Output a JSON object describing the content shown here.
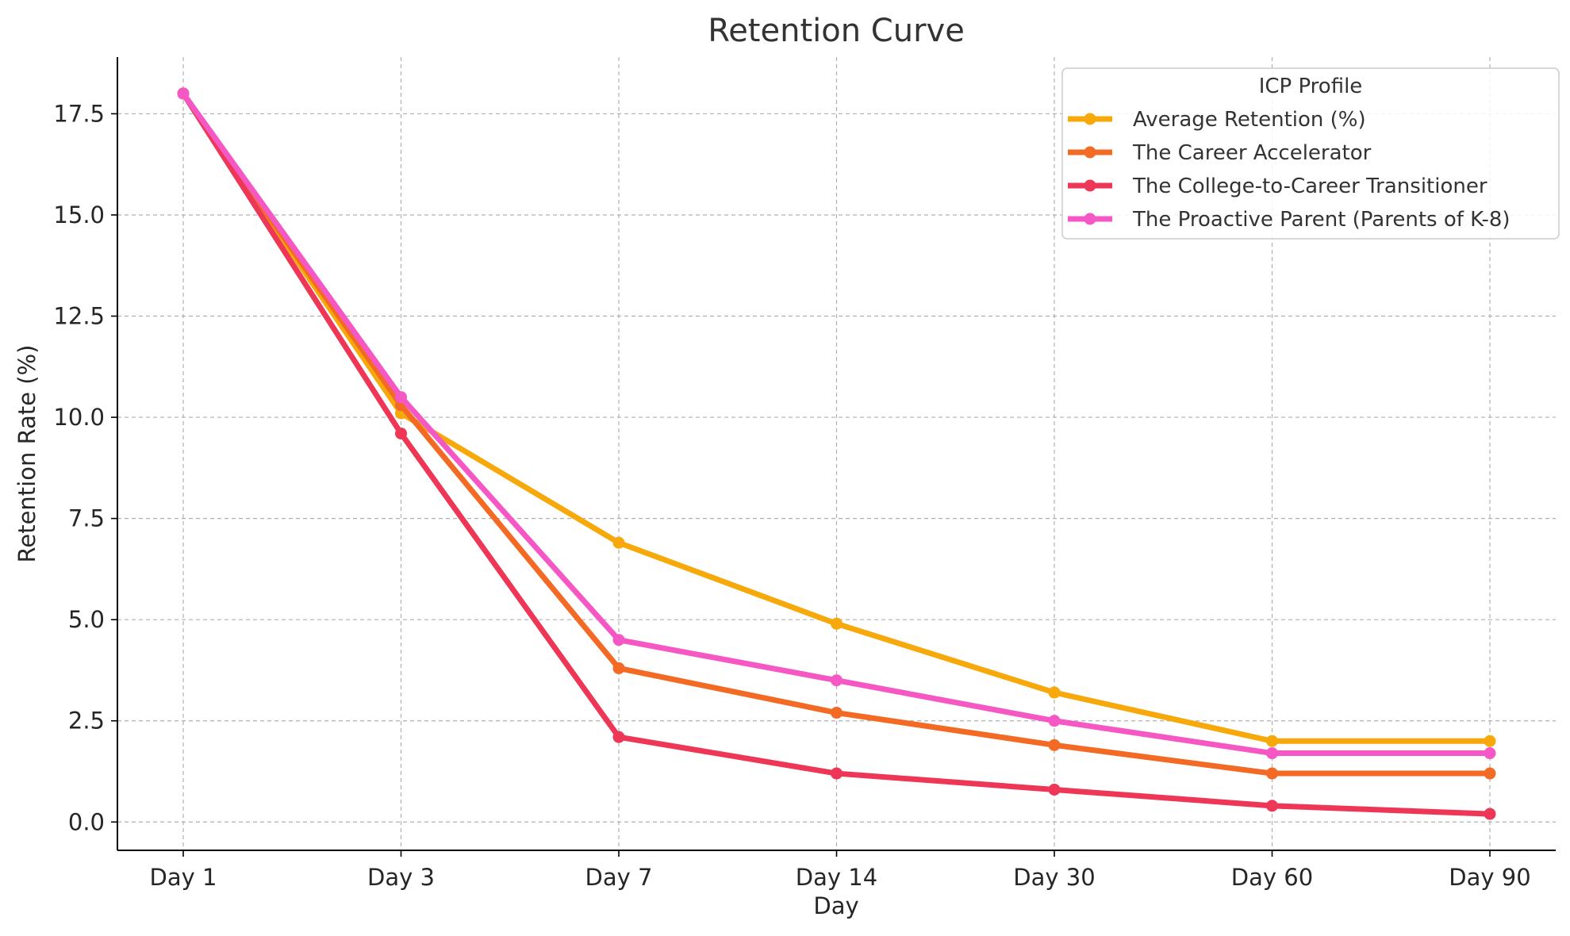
{
  "chart_data": {
    "type": "line",
    "title": "Retention Curve",
    "xlabel": "Day",
    "ylabel": "Retention Rate (%)",
    "categories": [
      "Day 1",
      "Day 3",
      "Day 7",
      "Day 14",
      "Day 30",
      "Day 60",
      "Day 90"
    ],
    "ylim": [
      -0.7,
      18.9
    ],
    "yticks": [
      0.0,
      2.5,
      5.0,
      7.5,
      10.0,
      12.5,
      15.0,
      17.5
    ],
    "ytick_labels": [
      "0.0",
      "2.5",
      "5.0",
      "7.5",
      "10.0",
      "12.5",
      "15.0",
      "17.5"
    ],
    "grid": true,
    "legend": {
      "title": "ICP Profile",
      "placement": "top-right"
    },
    "series": [
      {
        "name": "Average Retention (%)",
        "color": "#F7A80A",
        "values": [
          18.0,
          10.1,
          6.9,
          4.9,
          3.2,
          2.0,
          2.0
        ]
      },
      {
        "name": "The Career Accelerator",
        "color": "#F26A24",
        "values": [
          18.0,
          10.3,
          3.8,
          2.7,
          1.9,
          1.2,
          1.2
        ]
      },
      {
        "name": "The College-to-Career Transitioner",
        "color": "#EE3656",
        "values": [
          18.0,
          9.6,
          2.1,
          1.2,
          0.8,
          0.4,
          0.2
        ]
      },
      {
        "name": "The Proactive Parent (Parents of K-8)",
        "color": "#F558C4",
        "values": [
          18.0,
          10.5,
          4.5,
          3.5,
          2.5,
          1.7,
          1.7
        ]
      }
    ]
  }
}
